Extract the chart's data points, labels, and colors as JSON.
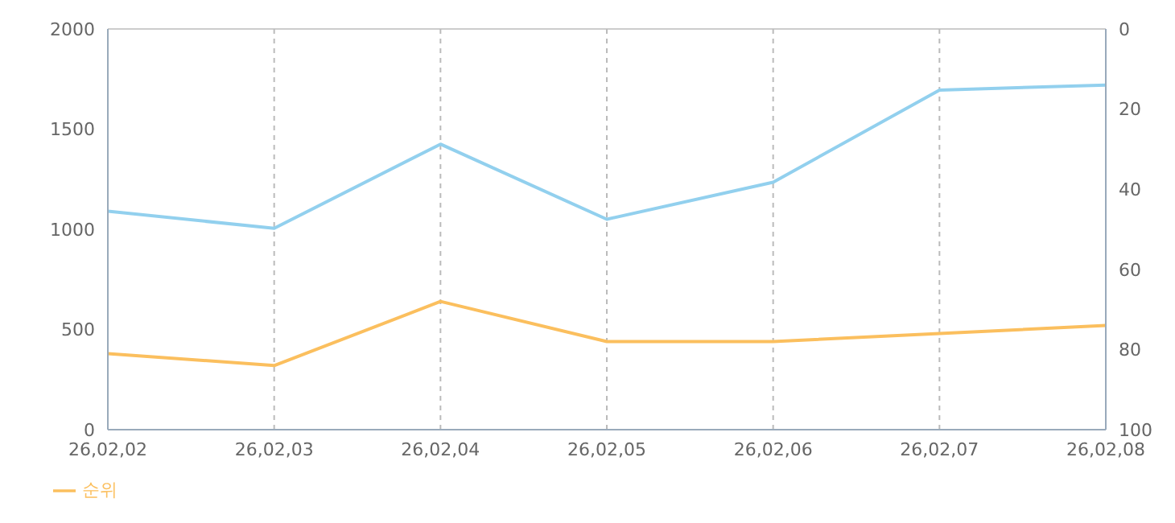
{
  "chart_data": {
    "type": "line",
    "categories": [
      "26,02,02",
      "26,02,03",
      "26,02,04",
      "26,02,05",
      "26,02,06",
      "26,02,07",
      "26,02,08"
    ],
    "series": [
      {
        "color": "#92d0ee",
        "values": [
          1090,
          1005,
          1425,
          1050,
          1235,
          1695,
          1720
        ]
      },
      {
        "name": "순위",
        "color": "#fbbf5e",
        "axis": "y2",
        "values": [
          81,
          84,
          68,
          78,
          78,
          76,
          74
        ]
      }
    ],
    "ylim": [
      0,
      2000
    ],
    "yticks": [
      0,
      500,
      1000,
      1500,
      2000
    ],
    "y2lim": [
      100,
      0
    ],
    "y2ticks": [
      0,
      20,
      40,
      60,
      80,
      100
    ],
    "grid": true,
    "legend": "bottom left",
    "marker": "none",
    "line_style": "solid"
  }
}
